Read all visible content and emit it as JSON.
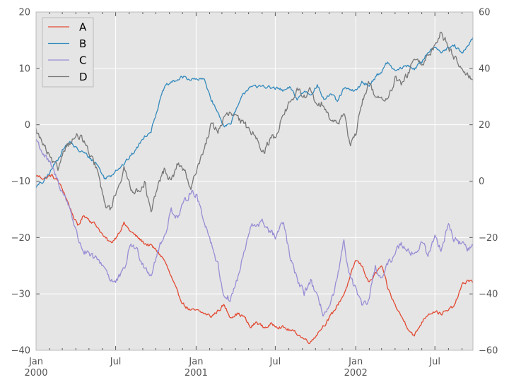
{
  "chart_data": {
    "type": "line",
    "background": "#e5e5e5",
    "grid": true,
    "legend_position": "top-left",
    "x_range": [
      "2000-01-01",
      "2002-09-26"
    ],
    "x_ticks": [
      {
        "date": "2000-01-01",
        "label": "Jan",
        "sublabel": "2000"
      },
      {
        "date": "2000-07-01",
        "label": "Jul",
        "sublabel": ""
      },
      {
        "date": "2001-01-01",
        "label": "Jan",
        "sublabel": "2001"
      },
      {
        "date": "2001-07-01",
        "label": "Jul",
        "sublabel": ""
      },
      {
        "date": "2002-01-01",
        "label": "Jan",
        "sublabel": "2002"
      },
      {
        "date": "2002-07-01",
        "label": "Jul",
        "sublabel": ""
      }
    ],
    "y_left": {
      "ylim": [
        -40,
        20
      ],
      "ticks": [
        "20",
        "10",
        "0",
        "−10",
        "−20",
        "−30",
        "−40"
      ],
      "tick_values": [
        20,
        10,
        0,
        -10,
        -20,
        -30,
        -40
      ]
    },
    "y_right": {
      "ylim": [
        -60,
        60
      ],
      "ticks": [
        "60",
        "40",
        "20",
        "0",
        "−20",
        "−40",
        "−60"
      ],
      "tick_values": [
        60,
        40,
        20,
        0,
        -20,
        -40,
        -60
      ]
    },
    "series": [
      {
        "name": "A",
        "color": "#e24a33",
        "axis": "left",
        "points": [
          [
            "2000-01-01",
            -9
          ],
          [
            "2000-01-20",
            -9.5
          ],
          [
            "2000-02-05",
            -9
          ],
          [
            "2000-02-20",
            -10
          ],
          [
            "2000-03-05",
            -12
          ],
          [
            "2000-03-20",
            -15
          ],
          [
            "2000-04-05",
            -18
          ],
          [
            "2000-04-20",
            -16
          ],
          [
            "2000-05-05",
            -17
          ],
          [
            "2000-05-20",
            -18
          ],
          [
            "2000-06-05",
            -20
          ],
          [
            "2000-06-20",
            -21
          ],
          [
            "2000-07-01",
            -20
          ],
          [
            "2000-07-20",
            -17.5
          ],
          [
            "2000-08-05",
            -19
          ],
          [
            "2000-08-20",
            -20
          ],
          [
            "2000-09-05",
            -21
          ],
          [
            "2000-09-20",
            -21.5
          ],
          [
            "2000-10-05",
            -22.5
          ],
          [
            "2000-10-20",
            -24
          ],
          [
            "2000-11-05",
            -27
          ],
          [
            "2000-11-20",
            -30
          ],
          [
            "2000-12-05",
            -32
          ],
          [
            "2000-12-20",
            -33
          ],
          [
            "2001-01-01",
            -33
          ],
          [
            "2001-01-20",
            -33.5
          ],
          [
            "2001-02-05",
            -34
          ],
          [
            "2001-02-20",
            -33
          ],
          [
            "2001-03-05",
            -32
          ],
          [
            "2001-03-20",
            -34
          ],
          [
            "2001-04-05",
            -33.5
          ],
          [
            "2001-04-20",
            -34
          ],
          [
            "2001-05-05",
            -36
          ],
          [
            "2001-05-20",
            -35
          ],
          [
            "2001-06-05",
            -36
          ],
          [
            "2001-06-20",
            -35.5
          ],
          [
            "2001-07-01",
            -35.5
          ],
          [
            "2001-07-20",
            -36
          ],
          [
            "2001-08-05",
            -36.5
          ],
          [
            "2001-08-20",
            -37
          ],
          [
            "2001-09-05",
            -38
          ],
          [
            "2001-09-20",
            -38.5
          ],
          [
            "2001-10-05",
            -37
          ],
          [
            "2001-10-20",
            -35.5
          ],
          [
            "2001-11-05",
            -34
          ],
          [
            "2001-11-20",
            -32
          ],
          [
            "2001-12-05",
            -30
          ],
          [
            "2001-12-20",
            -27
          ],
          [
            "2002-01-01",
            -24
          ],
          [
            "2002-01-15",
            -25
          ],
          [
            "2002-02-01",
            -28
          ],
          [
            "2002-02-15",
            -26.5
          ],
          [
            "2002-03-01",
            -25
          ],
          [
            "2002-03-15",
            -29
          ],
          [
            "2002-04-01",
            -32
          ],
          [
            "2002-04-15",
            -34
          ],
          [
            "2002-05-01",
            -36
          ],
          [
            "2002-05-15",
            -37.5
          ],
          [
            "2002-06-01",
            -35
          ],
          [
            "2002-06-15",
            -33.5
          ],
          [
            "2002-07-01",
            -33
          ],
          [
            "2002-07-15",
            -33.5
          ],
          [
            "2002-08-01",
            -33
          ],
          [
            "2002-08-15",
            -32
          ],
          [
            "2002-09-01",
            -28.5
          ],
          [
            "2002-09-15",
            -27.5
          ],
          [
            "2002-09-26",
            -28
          ]
        ]
      },
      {
        "name": "B",
        "color": "#348abd",
        "axis": "left",
        "points": [
          [
            "2000-01-01",
            -11
          ],
          [
            "2000-01-20",
            -10
          ],
          [
            "2000-02-05",
            -8
          ],
          [
            "2000-02-20",
            -6
          ],
          [
            "2000-03-05",
            -4
          ],
          [
            "2000-03-20",
            -3
          ],
          [
            "2000-04-05",
            -4.5
          ],
          [
            "2000-04-20",
            -5
          ],
          [
            "2000-05-05",
            -6
          ],
          [
            "2000-05-20",
            -7
          ],
          [
            "2000-06-05",
            -9.5
          ],
          [
            "2000-06-20",
            -9
          ],
          [
            "2000-07-01",
            -8
          ],
          [
            "2000-07-20",
            -7
          ],
          [
            "2000-08-05",
            -5.5
          ],
          [
            "2000-08-20",
            -4
          ],
          [
            "2000-09-05",
            -2
          ],
          [
            "2000-09-20",
            -1
          ],
          [
            "2000-10-05",
            3
          ],
          [
            "2000-10-20",
            6.5
          ],
          [
            "2000-11-05",
            7.5
          ],
          [
            "2000-11-20",
            8
          ],
          [
            "2000-12-05",
            8.5
          ],
          [
            "2000-12-20",
            8
          ],
          [
            "2001-01-01",
            8
          ],
          [
            "2001-01-20",
            8
          ],
          [
            "2001-02-05",
            4.5
          ],
          [
            "2001-02-20",
            2
          ],
          [
            "2001-03-05",
            0
          ],
          [
            "2001-03-20",
            0
          ],
          [
            "2001-04-05",
            3
          ],
          [
            "2001-04-20",
            5.5
          ],
          [
            "2001-05-05",
            7
          ],
          [
            "2001-05-20",
            6.5
          ],
          [
            "2001-06-05",
            7
          ],
          [
            "2001-06-20",
            6.5
          ],
          [
            "2001-07-01",
            6.5
          ],
          [
            "2001-07-20",
            6
          ],
          [
            "2001-08-05",
            6.5
          ],
          [
            "2001-08-20",
            4.5
          ],
          [
            "2001-09-05",
            6
          ],
          [
            "2001-09-20",
            5.5
          ],
          [
            "2001-10-05",
            7
          ],
          [
            "2001-10-20",
            4.5
          ],
          [
            "2001-11-05",
            5.5
          ],
          [
            "2001-11-20",
            4
          ],
          [
            "2001-12-05",
            6.5
          ],
          [
            "2001-12-20",
            6
          ],
          [
            "2002-01-01",
            6
          ],
          [
            "2002-01-15",
            7.5
          ],
          [
            "2002-02-01",
            7
          ],
          [
            "2002-02-15",
            8.5
          ],
          [
            "2002-03-01",
            9.5
          ],
          [
            "2002-03-15",
            11
          ],
          [
            "2002-04-01",
            9.5
          ],
          [
            "2002-04-15",
            10
          ],
          [
            "2002-05-01",
            10.5
          ],
          [
            "2002-05-15",
            10
          ],
          [
            "2002-06-01",
            11
          ],
          [
            "2002-06-15",
            13
          ],
          [
            "2002-07-01",
            14
          ],
          [
            "2002-07-15",
            13
          ],
          [
            "2002-08-01",
            13.5
          ],
          [
            "2002-08-15",
            14
          ],
          [
            "2002-09-01",
            12.5
          ],
          [
            "2002-09-15",
            14
          ],
          [
            "2002-09-26",
            15.5
          ]
        ]
      },
      {
        "name": "C",
        "color": "#988ed5",
        "axis": "right",
        "points": [
          [
            "2000-01-01",
            15
          ],
          [
            "2000-01-20",
            9
          ],
          [
            "2000-02-05",
            5
          ],
          [
            "2000-02-20",
            0
          ],
          [
            "2000-03-05",
            -5
          ],
          [
            "2000-03-20",
            -10
          ],
          [
            "2000-04-05",
            -20
          ],
          [
            "2000-04-20",
            -25
          ],
          [
            "2000-05-05",
            -27
          ],
          [
            "2000-05-20",
            -28
          ],
          [
            "2000-06-05",
            -30
          ],
          [
            "2000-06-20",
            -35
          ],
          [
            "2000-07-01",
            -36
          ],
          [
            "2000-07-20",
            -32
          ],
          [
            "2000-08-05",
            -22
          ],
          [
            "2000-08-20",
            -25
          ],
          [
            "2000-09-05",
            -30
          ],
          [
            "2000-09-20",
            -33
          ],
          [
            "2000-10-05",
            -25
          ],
          [
            "2000-10-20",
            -20
          ],
          [
            "2000-11-05",
            -10
          ],
          [
            "2000-11-20",
            -13
          ],
          [
            "2000-12-05",
            -8
          ],
          [
            "2000-12-20",
            -3
          ],
          [
            "2001-01-01",
            -5
          ],
          [
            "2001-01-20",
            -14
          ],
          [
            "2001-02-05",
            -22
          ],
          [
            "2001-02-20",
            -30
          ],
          [
            "2001-03-05",
            -40
          ],
          [
            "2001-03-20",
            -42
          ],
          [
            "2001-04-05",
            -35
          ],
          [
            "2001-04-20",
            -26
          ],
          [
            "2001-05-05",
            -17
          ],
          [
            "2001-05-20",
            -15
          ],
          [
            "2001-06-05",
            -15
          ],
          [
            "2001-06-20",
            -18
          ],
          [
            "2001-07-01",
            -20
          ],
          [
            "2001-07-20",
            -15
          ],
          [
            "2001-08-05",
            -28
          ],
          [
            "2001-08-20",
            -35
          ],
          [
            "2001-09-05",
            -40
          ],
          [
            "2001-09-20",
            -35
          ],
          [
            "2001-10-05",
            -42
          ],
          [
            "2001-10-20",
            -47
          ],
          [
            "2001-11-05",
            -44
          ],
          [
            "2001-11-20",
            -35
          ],
          [
            "2001-12-05",
            -22
          ],
          [
            "2001-12-20",
            -35
          ],
          [
            "2002-01-01",
            -38
          ],
          [
            "2002-01-15",
            -45
          ],
          [
            "2002-02-01",
            -42
          ],
          [
            "2002-02-15",
            -30
          ],
          [
            "2002-03-01",
            -35
          ],
          [
            "2002-03-15",
            -30
          ],
          [
            "2002-04-01",
            -25
          ],
          [
            "2002-04-15",
            -22
          ],
          [
            "2002-05-01",
            -24
          ],
          [
            "2002-05-15",
            -26
          ],
          [
            "2002-06-01",
            -22
          ],
          [
            "2002-06-15",
            -26
          ],
          [
            "2002-07-01",
            -20
          ],
          [
            "2002-07-15",
            -24
          ],
          [
            "2002-08-01",
            -15
          ],
          [
            "2002-08-15",
            -21
          ],
          [
            "2002-09-01",
            -22
          ],
          [
            "2002-09-15",
            -24
          ],
          [
            "2002-09-26",
            -23
          ]
        ]
      },
      {
        "name": "D",
        "color": "#777777",
        "axis": "right",
        "points": [
          [
            "2000-01-01",
            18
          ],
          [
            "2000-01-20",
            12
          ],
          [
            "2000-02-05",
            7
          ],
          [
            "2000-02-20",
            4
          ],
          [
            "2000-03-05",
            12
          ],
          [
            "2000-03-20",
            14
          ],
          [
            "2000-04-05",
            16
          ],
          [
            "2000-04-20",
            14
          ],
          [
            "2000-05-05",
            8
          ],
          [
            "2000-05-20",
            4
          ],
          [
            "2000-06-05",
            -8
          ],
          [
            "2000-06-20",
            -10
          ],
          [
            "2000-07-01",
            -4
          ],
          [
            "2000-07-20",
            4
          ],
          [
            "2000-08-05",
            -2
          ],
          [
            "2000-08-20",
            -4
          ],
          [
            "2000-09-05",
            0
          ],
          [
            "2000-09-20",
            -12
          ],
          [
            "2000-10-05",
            -2
          ],
          [
            "2000-10-20",
            4
          ],
          [
            "2000-11-05",
            0
          ],
          [
            "2000-11-20",
            6
          ],
          [
            "2000-12-05",
            4
          ],
          [
            "2000-12-20",
            -4
          ],
          [
            "2001-01-01",
            4
          ],
          [
            "2001-01-20",
            12
          ],
          [
            "2001-02-05",
            20
          ],
          [
            "2001-02-20",
            18
          ],
          [
            "2001-03-05",
            22
          ],
          [
            "2001-03-20",
            24
          ],
          [
            "2001-04-05",
            22
          ],
          [
            "2001-04-20",
            20
          ],
          [
            "2001-05-05",
            18
          ],
          [
            "2001-05-20",
            16
          ],
          [
            "2001-06-05",
            10
          ],
          [
            "2001-06-20",
            15
          ],
          [
            "2001-07-01",
            16
          ],
          [
            "2001-07-20",
            24
          ],
          [
            "2001-08-05",
            28
          ],
          [
            "2001-08-20",
            32
          ],
          [
            "2001-09-05",
            30
          ],
          [
            "2001-09-20",
            32
          ],
          [
            "2001-10-05",
            26
          ],
          [
            "2001-10-20",
            28
          ],
          [
            "2001-11-05",
            22
          ],
          [
            "2001-11-20",
            20
          ],
          [
            "2001-12-05",
            25
          ],
          [
            "2001-12-20",
            12
          ],
          [
            "2002-01-01",
            16
          ],
          [
            "2002-01-15",
            28
          ],
          [
            "2002-02-01",
            35
          ],
          [
            "2002-02-15",
            30
          ],
          [
            "2002-03-01",
            30
          ],
          [
            "2002-03-15",
            28
          ],
          [
            "2002-04-01",
            36
          ],
          [
            "2002-04-15",
            34
          ],
          [
            "2002-05-01",
            38
          ],
          [
            "2002-05-15",
            44
          ],
          [
            "2002-06-01",
            40
          ],
          [
            "2002-06-15",
            45
          ],
          [
            "2002-07-01",
            48
          ],
          [
            "2002-07-15",
            53
          ],
          [
            "2002-08-01",
            48
          ],
          [
            "2002-08-15",
            44
          ],
          [
            "2002-09-01",
            40
          ],
          [
            "2002-09-15",
            38
          ],
          [
            "2002-09-26",
            36
          ]
        ]
      }
    ]
  }
}
